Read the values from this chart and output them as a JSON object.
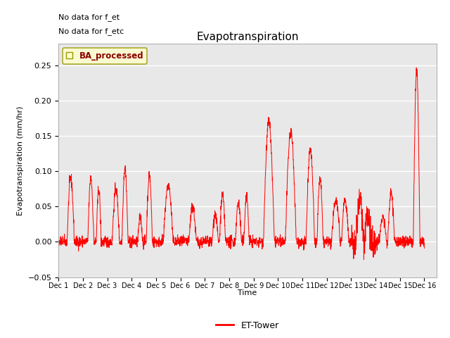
{
  "title": "Evapotranspiration",
  "xlabel": "Time",
  "ylabel": "Evapotranspiration (mm/hr)",
  "ylim": [
    -0.05,
    0.28
  ],
  "yticks": [
    -0.05,
    0.0,
    0.05,
    0.1,
    0.15,
    0.2,
    0.25
  ],
  "line_color": "red",
  "line_label": "ET-Tower",
  "legend_label": "BA_processed",
  "text_line1": "No data for f_et",
  "text_line2": "No data for f_etc",
  "bg_color": "#e8e8e8",
  "fig_color": "#ffffff",
  "seed": 42,
  "n_points": 2160
}
